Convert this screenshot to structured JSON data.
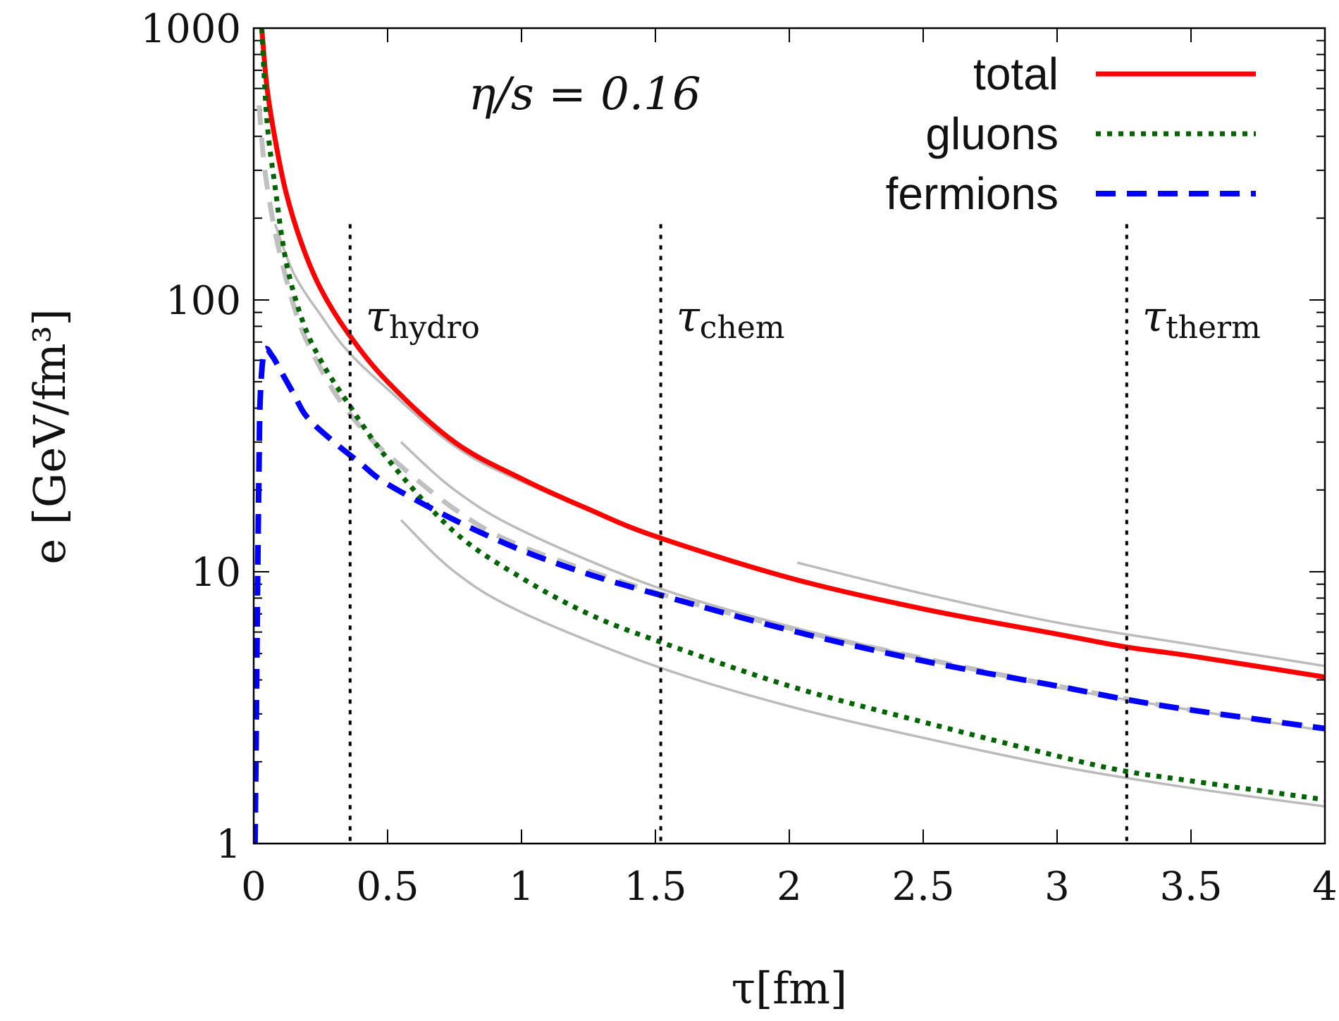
{
  "chart_data": {
    "type": "line",
    "title": "",
    "xlabel": "τ[fm]",
    "ylabel": "e [GeV/fm³]",
    "xlim": [
      0,
      4
    ],
    "ylim": [
      1,
      1000
    ],
    "y_scale": "log",
    "x_ticks": [
      "0",
      "0.5",
      "1",
      "1.5",
      "2",
      "2.5",
      "3",
      "3.5",
      "4"
    ],
    "x_tick_values": [
      0,
      0.5,
      1,
      1.5,
      2,
      2.5,
      3,
      3.5,
      4
    ],
    "y_ticks": [
      "1",
      "10",
      "100",
      "1000"
    ],
    "y_tick_values": [
      1,
      10,
      100,
      1000
    ],
    "annotation": "η/s = 0.16",
    "legend_position": "top-right",
    "legend": [
      "total",
      "gluons",
      "fermions"
    ],
    "series": [
      {
        "name": "total",
        "color": "#ff0000",
        "style": "solid",
        "x": [
          0.03,
          0.05,
          0.08,
          0.12,
          0.18,
          0.25,
          0.35,
          0.5,
          0.75,
          1.0,
          1.25,
          1.5,
          2.0,
          2.5,
          3.0,
          3.25,
          3.5,
          4.0
        ],
        "y": [
          1000,
          600,
          390,
          250,
          160,
          110,
          76,
          50,
          30,
          22,
          17,
          13.5,
          9.5,
          7.3,
          5.9,
          5.3,
          4.9,
          4.1
        ]
      },
      {
        "name": "gluons",
        "color": "#006400",
        "style": "dotted",
        "x": [
          0.03,
          0.05,
          0.08,
          0.12,
          0.18,
          0.25,
          0.35,
          0.5,
          0.75,
          1.0,
          1.25,
          1.5,
          2.0,
          2.5,
          3.0,
          3.25,
          3.5,
          4.0
        ],
        "y": [
          1000,
          450,
          260,
          140,
          85,
          60,
          42,
          26,
          14,
          9.5,
          7.0,
          5.6,
          3.8,
          2.8,
          2.1,
          1.85,
          1.7,
          1.45
        ]
      },
      {
        "name": "fermions",
        "color": "#0000ff",
        "style": "dashed",
        "x": [
          0.005,
          0.01,
          0.015,
          0.02,
          0.025,
          0.04,
          0.07,
          0.1,
          0.15,
          0.2,
          0.3,
          0.4,
          0.5,
          0.75,
          1.0,
          1.25,
          1.5,
          2.0,
          2.5,
          3.0,
          3.25,
          3.5,
          4.0
        ],
        "y": [
          1,
          3,
          10,
          25,
          45,
          65,
          62,
          55,
          45,
          37,
          30,
          25,
          21,
          15.5,
          12,
          9.8,
          8.3,
          6.1,
          4.7,
          3.8,
          3.4,
          3.1,
          2.65
        ]
      }
    ],
    "reference_curves": [
      {
        "style": "gray-solid",
        "color": "#bbbbbb",
        "x": [
          0.08,
          0.15,
          0.25,
          0.35,
          0.5,
          0.75,
          1.0,
          1.5,
          2.0,
          2.5,
          3.0,
          3.5,
          4.0
        ],
        "y": [
          190,
          125,
          88,
          65,
          47,
          29,
          21.5,
          13.5,
          9.6,
          7.3,
          5.9,
          4.9,
          4.1
        ]
      },
      {
        "style": "gray-solid",
        "color": "#bbbbbb",
        "x": [
          2.03,
          2.5,
          3.0,
          3.5,
          4.0
        ],
        "y": [
          10.8,
          8.3,
          6.5,
          5.4,
          4.5
        ]
      },
      {
        "style": "gray-solid",
        "color": "#bbbbbb",
        "x": [
          0.55,
          0.75,
          1.0,
          1.5,
          2.0,
          2.5,
          3.0,
          3.5,
          4.0
        ],
        "y": [
          30,
          20,
          14.2,
          8.8,
          6.3,
          4.8,
          3.75,
          3.1,
          2.6
        ]
      },
      {
        "style": "gray-solid",
        "color": "#bbbbbb",
        "x": [
          0.55,
          0.75,
          1.0,
          1.5,
          2.0,
          2.5,
          3.0,
          3.5,
          4.0
        ],
        "y": [
          15.5,
          10.0,
          7.1,
          4.5,
          3.2,
          2.45,
          1.93,
          1.6,
          1.37
        ]
      },
      {
        "style": "gray-dashed",
        "color": "#c0c0c0",
        "x": [
          0.02,
          0.04,
          0.07,
          0.1,
          0.15,
          0.2,
          0.3,
          0.4,
          0.5,
          0.75,
          1.0,
          1.5,
          2.0,
          2.5,
          3.0,
          3.5,
          4.0
        ],
        "y": [
          520,
          310,
          200,
          145,
          95,
          70,
          46,
          34,
          27,
          17,
          12.4,
          8.4,
          6.2,
          4.8,
          3.8,
          3.1,
          2.65
        ]
      }
    ],
    "vertical_markers": [
      {
        "x": 0.36,
        "label": "τ",
        "subscript": "hydro"
      },
      {
        "x": 1.52,
        "label": "τ",
        "subscript": "chem"
      },
      {
        "x": 3.26,
        "label": "τ",
        "subscript": "therm"
      }
    ]
  }
}
